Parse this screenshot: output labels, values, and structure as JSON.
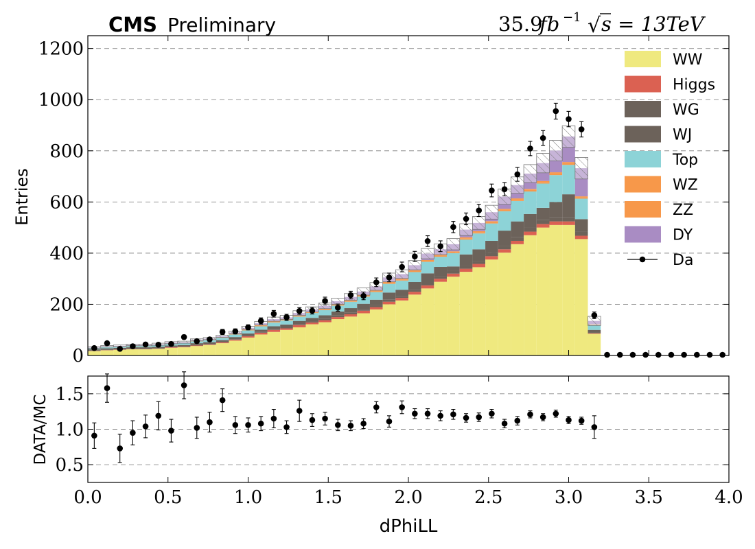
{
  "header": {
    "cms_bold": "CMS",
    "cms_label": "Preliminary",
    "lumi_value": "35.9",
    "lumi_unit": "fb",
    "lumi_exp": "−1",
    "sqrt_s_label": "s = 13TeV"
  },
  "colors": {
    "WW": "#efe97f",
    "Higgs": "#db6152",
    "WG": "#6c625a",
    "WJ": "#6c625a",
    "Top": "#8dd3d7",
    "WZ": "#f7984a",
    "ZZ": "#f7984a",
    "DY": "#a98cc3",
    "Data": "#000000"
  },
  "chart_data": [
    {
      "type": "bar",
      "stacked": true,
      "xlabel": "",
      "ylabel": "Entries",
      "xlim": [
        0.0,
        4.0
      ],
      "ylim": [
        0,
        1250
      ],
      "yticks": [
        0,
        200,
        400,
        600,
        800,
        1000,
        1200
      ],
      "grid": true,
      "legend_position": "top-right",
      "bin_width": 0.08,
      "bin_centers": [
        0.04,
        0.12,
        0.2,
        0.28,
        0.36,
        0.44,
        0.52,
        0.6,
        0.68,
        0.76,
        0.84,
        0.92,
        1.0,
        1.08,
        1.16,
        1.24,
        1.32,
        1.4,
        1.48,
        1.56,
        1.64,
        1.72,
        1.8,
        1.88,
        1.96,
        2.04,
        2.12,
        2.2,
        2.28,
        2.36,
        2.44,
        2.52,
        2.6,
        2.68,
        2.76,
        2.84,
        2.92,
        3.0,
        3.08,
        3.16,
        3.24,
        3.32,
        3.4,
        3.48,
        3.56,
        3.64,
        3.72,
        3.8,
        3.88,
        3.96
      ],
      "series": [
        {
          "name": "WW",
          "values": [
            17,
            20,
            22,
            24,
            24,
            26,
            30,
            32,
            37,
            41,
            48,
            58,
            70,
            82,
            92,
            100,
            110,
            122,
            130,
            142,
            152,
            165,
            180,
            200,
            215,
            238,
            262,
            288,
            308,
            327,
            345,
            375,
            402,
            435,
            470,
            500,
            510,
            510,
            455,
            85,
            0,
            0,
            0,
            0,
            0,
            0,
            0,
            0,
            0,
            0
          ]
        },
        {
          "name": "Higgs",
          "values": [
            1,
            1,
            1,
            1,
            1,
            1,
            2,
            2,
            2,
            2,
            3,
            4,
            5,
            7,
            8,
            6,
            9,
            7,
            8,
            8,
            9,
            10,
            9,
            10,
            10,
            11,
            12,
            12,
            12,
            12,
            13,
            13,
            13,
            13,
            14,
            14,
            14,
            14,
            13,
            2,
            0,
            0,
            0,
            0,
            0,
            0,
            0,
            0,
            0,
            0
          ]
        },
        {
          "name": "WG",
          "values": [
            1,
            1,
            1,
            1,
            1,
            1,
            1,
            1,
            2,
            2,
            2,
            2,
            3,
            3,
            4,
            4,
            4,
            5,
            5,
            6,
            6,
            7,
            7,
            8,
            8,
            8,
            9,
            10,
            10,
            11,
            12,
            12,
            13,
            14,
            15,
            15,
            16,
            16,
            15,
            3,
            0,
            0,
            0,
            0,
            0,
            0,
            0,
            0,
            0,
            0
          ]
        },
        {
          "name": "WJ",
          "values": [
            5,
            6,
            6,
            6,
            6,
            6,
            6,
            6,
            7,
            7,
            7,
            8,
            8,
            9,
            10,
            11,
            12,
            13,
            14,
            16,
            18,
            20,
            22,
            28,
            24,
            30,
            38,
            36,
            18,
            45,
            45,
            48,
            60,
            62,
            54,
            48,
            60,
            90,
            50,
            10,
            0,
            0,
            0,
            0,
            0,
            0,
            0,
            0,
            0,
            0
          ]
        },
        {
          "name": "Top",
          "values": [
            3,
            4,
            4,
            5,
            5,
            5,
            6,
            6,
            7,
            8,
            9,
            10,
            12,
            13,
            15,
            16,
            17,
            19,
            20,
            23,
            25,
            28,
            30,
            34,
            36,
            39,
            45,
            40,
            52,
            58,
            62,
            68,
            76,
            80,
            88,
            95,
            105,
            115,
            80,
            20,
            0,
            0,
            0,
            0,
            0,
            0,
            0,
            0,
            0,
            0
          ]
        },
        {
          "name": "WZ",
          "values": [
            1,
            1,
            1,
            1,
            1,
            1,
            1,
            1,
            1,
            1,
            1,
            2,
            2,
            2,
            2,
            2,
            2,
            2,
            3,
            3,
            3,
            3,
            3,
            4,
            4,
            4,
            4,
            4,
            4,
            5,
            5,
            5,
            5,
            6,
            6,
            6,
            6,
            6,
            5,
            1,
            0,
            0,
            0,
            0,
            0,
            0,
            0,
            0,
            0,
            0
          ]
        },
        {
          "name": "ZZ",
          "values": [
            1,
            1,
            1,
            1,
            1,
            1,
            1,
            1,
            1,
            1,
            1,
            1,
            2,
            2,
            2,
            2,
            2,
            2,
            2,
            2,
            2,
            3,
            3,
            3,
            3,
            3,
            3,
            3,
            3,
            4,
            4,
            4,
            4,
            4,
            4,
            4,
            5,
            5,
            4,
            1,
            0,
            0,
            0,
            0,
            0,
            0,
            0,
            0,
            0,
            0
          ]
        },
        {
          "name": "DY",
          "values": [
            2,
            2,
            2,
            2,
            2,
            3,
            3,
            3,
            4,
            4,
            4,
            5,
            6,
            8,
            9,
            8,
            10,
            10,
            12,
            12,
            14,
            14,
            16,
            18,
            18,
            20,
            25,
            22,
            28,
            30,
            32,
            35,
            48,
            52,
            60,
            70,
            85,
            100,
            110,
            13,
            0,
            0,
            0,
            0,
            0,
            0,
            0,
            0,
            0,
            0
          ]
        }
      ],
      "unc": [
        3,
        3,
        3,
        3,
        3,
        4,
        4,
        4,
        4,
        4,
        4,
        5,
        6,
        7,
        8,
        8,
        9,
        10,
        11,
        12,
        13,
        14,
        15,
        17,
        17,
        18,
        20,
        21,
        22,
        23,
        25,
        27,
        30,
        32,
        35,
        38,
        40,
        42,
        42,
        18,
        0,
        0,
        0,
        0,
        0,
        0,
        0,
        0,
        0,
        0
      ],
      "data": {
        "name": "Da",
        "values": [
          29,
          48,
          26,
          36,
          43,
          42,
          45,
          72,
          56,
          63,
          92,
          94,
          110,
          135,
          163,
          149,
          174,
          175,
          213,
          187,
          236,
          233,
          286,
          305,
          346,
          387,
          447,
          427,
          502,
          534,
          567,
          645,
          650,
          708,
          809,
          850,
          955,
          924,
          884,
          157,
          0,
          0,
          0,
          0,
          0,
          0,
          0,
          0,
          0,
          0
        ],
        "errors": [
          5,
          7,
          5,
          6,
          7,
          7,
          7,
          8,
          8,
          8,
          10,
          10,
          10,
          12,
          13,
          12,
          13,
          13,
          15,
          14,
          15,
          15,
          17,
          17,
          19,
          20,
          21,
          21,
          22,
          23,
          24,
          25,
          26,
          27,
          28,
          29,
          31,
          30,
          30,
          13,
          0,
          0,
          0,
          0,
          0,
          0,
          0,
          0,
          0,
          0
        ]
      }
    },
    {
      "type": "scatter",
      "xlabel": "dPhiLL",
      "ylabel": "DATA/MC",
      "xlim": [
        0.0,
        4.0
      ],
      "ylim": [
        0.25,
        1.75
      ],
      "xticks": [
        0.0,
        0.5,
        1.0,
        1.5,
        2.0,
        2.5,
        3.0,
        3.5,
        4.0
      ],
      "xticklabels": [
        "0.0",
        "0.5",
        "1.0",
        "1.5",
        "2.0",
        "2.5",
        "3.0",
        "3.5",
        "4.0"
      ],
      "yticks": [
        0.5,
        1.0,
        1.5
      ],
      "yticklabels": [
        "0.5",
        "1.0",
        "1.5"
      ],
      "grid": true,
      "x": [
        0.04,
        0.12,
        0.2,
        0.28,
        0.36,
        0.44,
        0.52,
        0.6,
        0.68,
        0.76,
        0.84,
        0.92,
        1.0,
        1.08,
        1.16,
        1.24,
        1.32,
        1.4,
        1.48,
        1.56,
        1.64,
        1.72,
        1.8,
        1.88,
        1.96,
        2.04,
        2.12,
        2.2,
        2.28,
        2.36,
        2.44,
        2.52,
        2.6,
        2.68,
        2.76,
        2.84,
        2.92,
        3.0,
        3.08,
        3.16
      ],
      "y": [
        0.91,
        1.58,
        0.73,
        0.95,
        1.04,
        1.19,
        0.98,
        1.62,
        1.02,
        1.1,
        1.41,
        1.06,
        1.06,
        1.08,
        1.15,
        1.03,
        1.26,
        1.13,
        1.15,
        1.06,
        1.05,
        1.08,
        1.31,
        1.11,
        1.31,
        1.22,
        1.22,
        1.19,
        1.21,
        1.16,
        1.17,
        1.22,
        1.08,
        1.12,
        1.21,
        1.17,
        1.22,
        1.13,
        1.12,
        1.03
      ],
      "errors": [
        0.18,
        0.2,
        0.2,
        0.17,
        0.16,
        0.2,
        0.16,
        0.19,
        0.15,
        0.14,
        0.16,
        0.12,
        0.1,
        0.1,
        0.13,
        0.09,
        0.15,
        0.09,
        0.09,
        0.08,
        0.07,
        0.07,
        0.08,
        0.08,
        0.09,
        0.07,
        0.07,
        0.07,
        0.07,
        0.06,
        0.06,
        0.06,
        0.06,
        0.06,
        0.05,
        0.05,
        0.05,
        0.05,
        0.05,
        0.16
      ]
    }
  ],
  "legend": {
    "items": [
      {
        "label": "WW",
        "key": "WW",
        "kind": "box"
      },
      {
        "label": "Higgs",
        "key": "Higgs",
        "kind": "box"
      },
      {
        "label": "WG",
        "key": "WG",
        "kind": "box"
      },
      {
        "label": "WJ",
        "key": "WJ",
        "kind": "box"
      },
      {
        "label": "Top",
        "key": "Top",
        "kind": "box"
      },
      {
        "label": "WZ",
        "key": "WZ",
        "kind": "box"
      },
      {
        "label": "ZZ",
        "key": "ZZ",
        "kind": "box"
      },
      {
        "label": "DY",
        "key": "DY",
        "kind": "box"
      },
      {
        "label": "Da",
        "key": "Data",
        "kind": "marker"
      }
    ]
  }
}
